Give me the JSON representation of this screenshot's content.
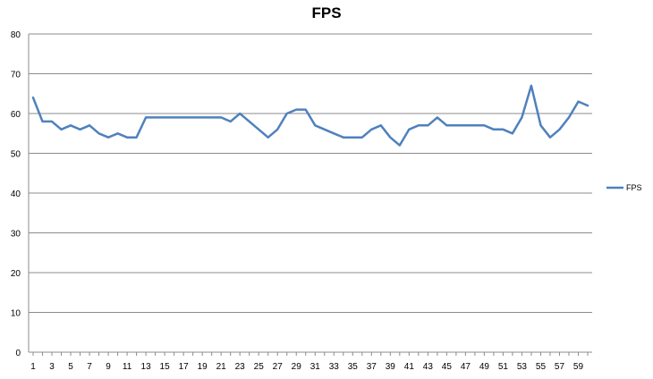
{
  "chart_data": {
    "type": "line",
    "title": "FPS",
    "xlabel": "",
    "ylabel": "",
    "ylim": [
      0,
      80
    ],
    "yticks": [
      0,
      10,
      20,
      30,
      40,
      50,
      60,
      70,
      80
    ],
    "xticks": [
      "1",
      "3",
      "5",
      "7",
      "9",
      "11",
      "13",
      "15",
      "17",
      "19",
      "21",
      "23",
      "25",
      "27",
      "29",
      "31",
      "33",
      "35",
      "37",
      "39",
      "41",
      "43",
      "45",
      "47",
      "49",
      "51",
      "53",
      "55",
      "57",
      "59"
    ],
    "x": [
      1,
      2,
      3,
      4,
      5,
      6,
      7,
      8,
      9,
      10,
      11,
      12,
      13,
      14,
      15,
      16,
      17,
      18,
      19,
      20,
      21,
      22,
      23,
      24,
      25,
      26,
      27,
      28,
      29,
      30,
      31,
      32,
      33,
      34,
      35,
      36,
      37,
      38,
      39,
      40,
      41,
      42,
      43,
      44,
      45,
      46,
      47,
      48,
      49,
      50,
      51,
      52,
      53,
      54,
      55,
      56,
      57,
      58,
      59,
      60
    ],
    "series": [
      {
        "name": "FPS",
        "color": "#4f81bd",
        "values": [
          64,
          58,
          58,
          56,
          57,
          56,
          57,
          55,
          54,
          55,
          54,
          54,
          59,
          59,
          59,
          59,
          59,
          59,
          59,
          59,
          59,
          58,
          60,
          58,
          56,
          54,
          56,
          60,
          61,
          61,
          57,
          56,
          55,
          54,
          54,
          54,
          56,
          57,
          54,
          52,
          56,
          57,
          57,
          59,
          57,
          57,
          57,
          57,
          57,
          56,
          56,
          55,
          59,
          67,
          57,
          54,
          56,
          59,
          63,
          62
        ]
      }
    ],
    "grid": true,
    "legend": "right"
  }
}
